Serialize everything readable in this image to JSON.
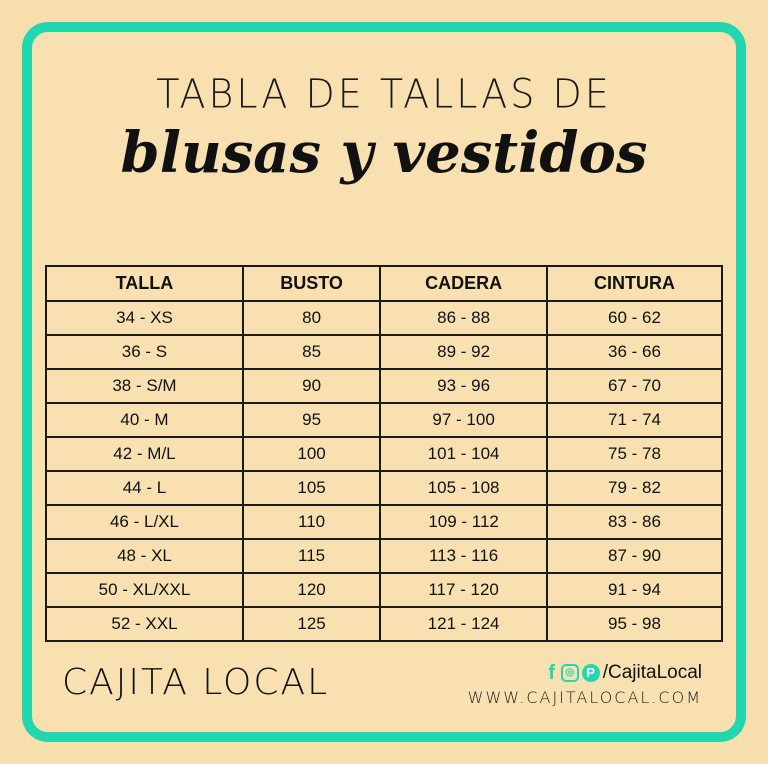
{
  "title": {
    "line1": "TABLA DE TALLAS DE",
    "line2": "blusas y vestidos"
  },
  "table": {
    "headers": [
      "TALLA",
      "BUSTO",
      "CADERA",
      "CINTURA"
    ],
    "rows": [
      [
        "34 - XS",
        "80",
        "86 - 88",
        "60 - 62"
      ],
      [
        "36 - S",
        "85",
        "89 - 92",
        "36 - 66"
      ],
      [
        "38 - S/M",
        "90",
        "93 - 96",
        "67 - 70"
      ],
      [
        "40 - M",
        "95",
        "97 - 100",
        "71 - 74"
      ],
      [
        "42 - M/L",
        "100",
        "101 - 104",
        "75 - 78"
      ],
      [
        "44 - L",
        "105",
        "105 - 108",
        "79 - 82"
      ],
      [
        "46 - L/XL",
        "110",
        "109 - 112",
        "83 - 86"
      ],
      [
        "48 - XL",
        "115",
        "113 - 116",
        "87 - 90"
      ],
      [
        "50 - XL/XXL",
        "120",
        "117 - 120",
        "91 - 94"
      ],
      [
        "52 - XXL",
        "125",
        "121 - 124",
        "95 - 98"
      ]
    ]
  },
  "footer": {
    "logo": "CAJITA LOCAL",
    "social_handle": "/CajitaLocal",
    "social_icons": [
      "facebook-icon",
      "instagram-icon",
      "pinterest-icon"
    ],
    "website": "WWW.CAJITALOCAL.COM"
  },
  "colors": {
    "accent": "#22d6b0",
    "background": "#f6dfad"
  }
}
